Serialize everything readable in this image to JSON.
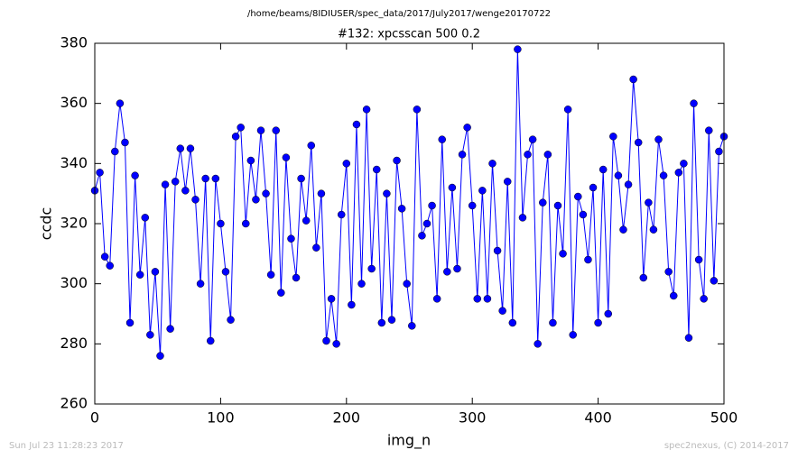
{
  "chart_data": {
    "type": "line",
    "title": "/home/beams/8IDIUSER/spec_data/2017/July2017/wenge20170722",
    "subtitle": "#132: xpcsscan 500 0.2",
    "x_label": "img_n",
    "y_label": "ccdc",
    "footer_left": "Sun Jul 23 11:28:23 2017",
    "footer_right": "spec2nexus, (C) 2014-2017",
    "x": [
      0,
      4,
      8,
      12,
      16,
      20,
      24,
      28,
      32,
      36,
      40,
      44,
      48,
      52,
      56,
      60,
      64,
      68,
      72,
      76,
      80,
      84,
      88,
      92,
      96,
      100,
      104,
      108,
      112,
      116,
      120,
      124,
      128,
      132,
      136,
      140,
      144,
      148,
      152,
      156,
      160,
      164,
      168,
      172,
      176,
      180,
      184,
      188,
      192,
      196,
      200,
      204,
      208,
      212,
      216,
      220,
      224,
      228,
      232,
      236,
      240,
      244,
      248,
      252,
      256,
      260,
      264,
      268,
      272,
      276,
      280,
      284,
      288,
      292,
      296,
      300,
      304,
      308,
      312,
      316,
      320,
      324,
      328,
      332,
      336,
      340,
      344,
      348,
      352,
      356,
      360,
      364,
      368,
      372,
      376,
      380,
      384,
      388,
      392,
      396,
      400,
      404,
      408,
      412,
      416,
      420,
      424,
      428,
      432,
      436,
      440,
      444,
      448,
      452,
      456,
      460,
      464,
      468,
      472,
      476,
      480,
      484,
      488,
      492,
      496,
      500
    ],
    "series": [
      {
        "name": "ccdc",
        "color": "#0000ff",
        "values": [
          331,
          337,
          309,
          306,
          344,
          360,
          347,
          287,
          336,
          303,
          322,
          283,
          304,
          276,
          333,
          285,
          334,
          345,
          331,
          345,
          328,
          300,
          335,
          281,
          335,
          320,
          304,
          288,
          349,
          352,
          320,
          341,
          328,
          351,
          330,
          303,
          351,
          297,
          342,
          315,
          302,
          335,
          321,
          346,
          312,
          330,
          281,
          295,
          280,
          323,
          340,
          293,
          353,
          300,
          358,
          305,
          338,
          287,
          330,
          288,
          341,
          325,
          300,
          286,
          358,
          316,
          320,
          326,
          295,
          348,
          304,
          332,
          305,
          343,
          352,
          326,
          295,
          331,
          295,
          340,
          311,
          291,
          334,
          287,
          378,
          322,
          343,
          348,
          280,
          327,
          343,
          287,
          326,
          310,
          358,
          283,
          329,
          323,
          308,
          332,
          287,
          338,
          290,
          349,
          336,
          318,
          333,
          368,
          347,
          302,
          327,
          318,
          348,
          336,
          304,
          296,
          337,
          340,
          282,
          360,
          308,
          295,
          351,
          301,
          344,
          349
        ]
      }
    ],
    "xlim": [
      0,
      500
    ],
    "ylim": [
      260,
      380
    ],
    "xticks": [
      0,
      100,
      200,
      300,
      400,
      500
    ],
    "yticks": [
      260,
      280,
      300,
      320,
      340,
      360,
      380
    ]
  }
}
